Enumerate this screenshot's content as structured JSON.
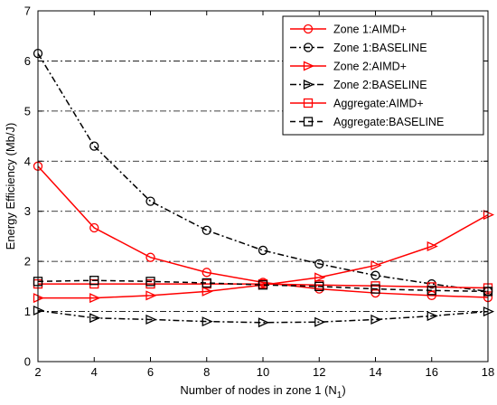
{
  "chart_data": {
    "type": "line",
    "xlabel": "Number of nodes in zone 1 (N",
    "xlabel_sub": "1",
    "xlabel_end": ")",
    "ylabel": "Energy Efficiency (Mb/J)",
    "xlim": [
      2,
      18
    ],
    "ylim": [
      0,
      7
    ],
    "xticks": [
      2,
      4,
      6,
      8,
      10,
      12,
      14,
      16,
      18
    ],
    "yticks": [
      0,
      1,
      2,
      3,
      4,
      5,
      6,
      7
    ],
    "grid": "horizontal dash-dot",
    "legend_position": "top-right",
    "x": [
      2,
      4,
      6,
      8,
      10,
      12,
      14,
      16,
      18
    ],
    "series": [
      {
        "name": "Zone 1:AIMD+",
        "color": "#ff0000",
        "dash": "solid",
        "marker": "circle",
        "values": [
          3.9,
          2.67,
          2.08,
          1.78,
          1.58,
          1.45,
          1.37,
          1.32,
          1.28
        ]
      },
      {
        "name": "Zone 1:BASELINE",
        "color": "#000000",
        "dash": "dashdot",
        "marker": "circle",
        "values": [
          6.15,
          4.3,
          3.2,
          2.62,
          2.22,
          1.95,
          1.72,
          1.55,
          1.4
        ]
      },
      {
        "name": "Zone 2:AIMD+",
        "color": "#ff0000",
        "dash": "solid",
        "marker": "triangle-right",
        "values": [
          1.27,
          1.27,
          1.32,
          1.4,
          1.53,
          1.68,
          1.92,
          2.3,
          2.93
        ]
      },
      {
        "name": "Zone 2:BASELINE",
        "color": "#000000",
        "dash": "dashdot",
        "marker": "triangle-right",
        "values": [
          1.02,
          0.87,
          0.84,
          0.8,
          0.78,
          0.79,
          0.84,
          0.91,
          1.0
        ]
      },
      {
        "name": "Aggregate:AIMD+",
        "color": "#ff0000",
        "dash": "solid",
        "marker": "square",
        "values": [
          1.55,
          1.55,
          1.55,
          1.55,
          1.55,
          1.53,
          1.51,
          1.49,
          1.47
        ]
      },
      {
        "name": "Aggregate:BASELINE",
        "color": "#000000",
        "dash": "dashed",
        "marker": "square",
        "values": [
          1.6,
          1.62,
          1.6,
          1.57,
          1.53,
          1.5,
          1.45,
          1.42,
          1.4
        ]
      }
    ]
  }
}
